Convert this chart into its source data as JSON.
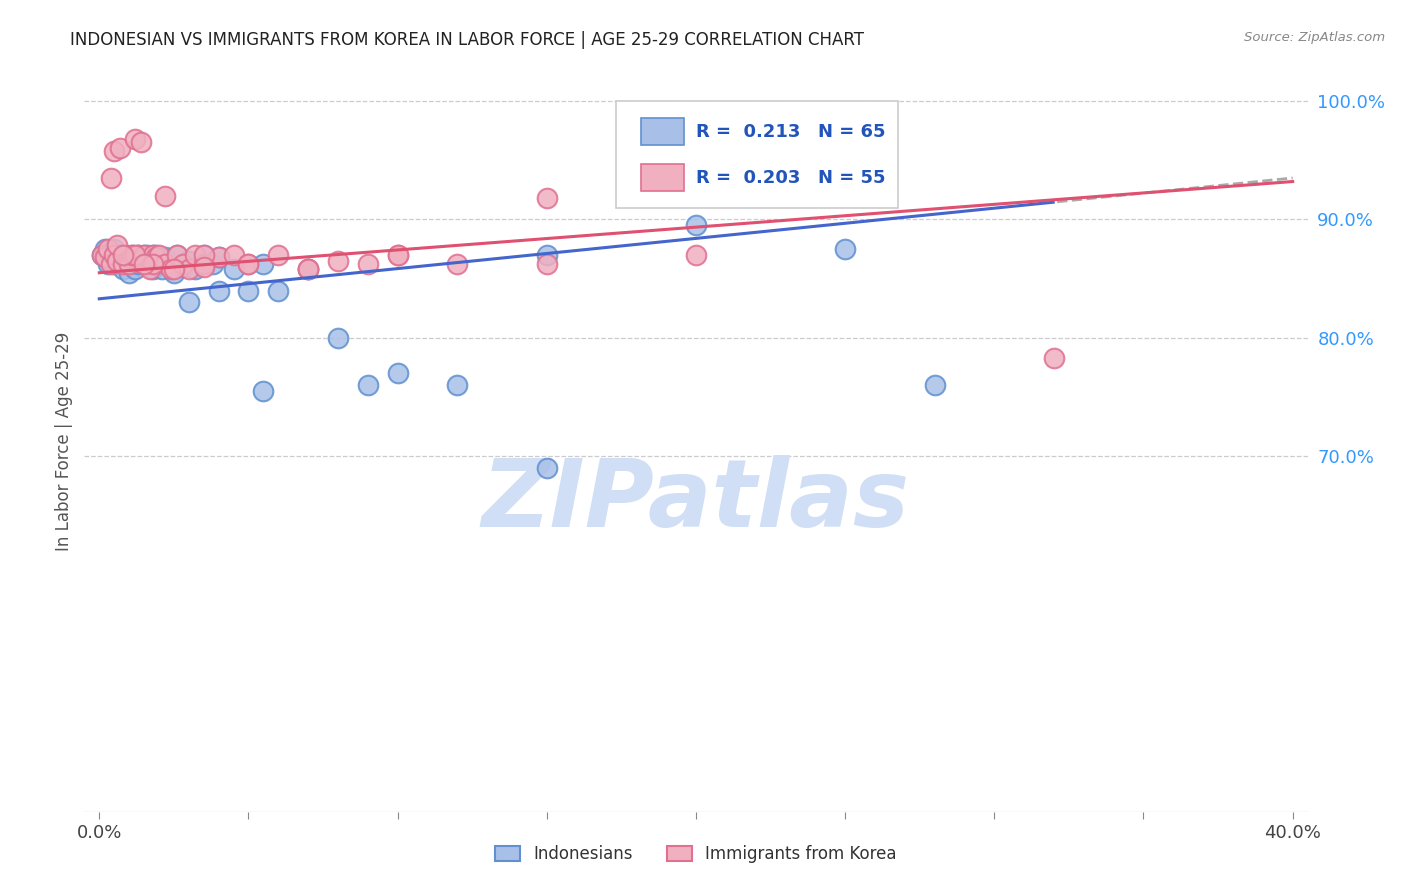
{
  "title": "INDONESIAN VS IMMIGRANTS FROM KOREA IN LABOR FORCE | AGE 25-29 CORRELATION CHART",
  "source": "Source: ZipAtlas.com",
  "ylabel": "In Labor Force | Age 25-29",
  "xlim": [
    -0.005,
    0.405
  ],
  "ylim": [
    0.4,
    1.025
  ],
  "xtick_positions": [
    0.0,
    0.05,
    0.1,
    0.15,
    0.2,
    0.25,
    0.3,
    0.35,
    0.4
  ],
  "xticklabels": [
    "0.0%",
    "",
    "",
    "",
    "",
    "",
    "",
    "",
    "40.0%"
  ],
  "ytick_right_vals": [
    0.7,
    0.8,
    0.9,
    1.0
  ],
  "ytick_right_labels": [
    "70.0%",
    "80.0%",
    "90.0%",
    "100.0%"
  ],
  "blue_face": "#a8c0e8",
  "blue_edge": "#6090d0",
  "pink_face": "#f0b0c0",
  "pink_edge": "#e07090",
  "blue_line": "#4466cc",
  "pink_line": "#e05070",
  "dash_color": "#aaaaaa",
  "watermark": "ZIPatlas",
  "watermark_color": "#d0dff5",
  "legend_R_blue": "R =  0.213",
  "legend_N_blue": "N = 65",
  "legend_R_pink": "R =  0.203",
  "legend_N_pink": "N = 55",
  "indo_x": [
    0.001,
    0.002,
    0.002,
    0.003,
    0.003,
    0.004,
    0.004,
    0.005,
    0.005,
    0.005,
    0.006,
    0.006,
    0.007,
    0.007,
    0.007,
    0.008,
    0.008,
    0.009,
    0.009,
    0.01,
    0.01,
    0.011,
    0.011,
    0.012,
    0.012,
    0.013,
    0.013,
    0.014,
    0.015,
    0.015,
    0.016,
    0.016,
    0.017,
    0.018,
    0.018,
    0.019,
    0.02,
    0.021,
    0.022,
    0.023,
    0.025,
    0.026,
    0.028,
    0.03,
    0.032,
    0.035,
    0.038,
    0.04,
    0.045,
    0.05,
    0.055,
    0.06,
    0.07,
    0.08,
    0.09,
    0.1,
    0.12,
    0.15,
    0.2,
    0.25,
    0.03,
    0.04,
    0.055,
    0.15,
    0.28
  ],
  "indo_y": [
    0.87,
    0.868,
    0.875,
    0.862,
    0.87,
    0.865,
    0.87,
    0.862,
    0.87,
    0.875,
    0.865,
    0.87,
    0.868,
    0.862,
    0.87,
    0.858,
    0.865,
    0.87,
    0.862,
    0.868,
    0.855,
    0.87,
    0.862,
    0.868,
    0.858,
    0.862,
    0.87,
    0.865,
    0.87,
    0.862,
    0.87,
    0.865,
    0.862,
    0.87,
    0.858,
    0.87,
    0.862,
    0.858,
    0.868,
    0.862,
    0.855,
    0.87,
    0.86,
    0.865,
    0.858,
    0.87,
    0.862,
    0.868,
    0.858,
    0.84,
    0.862,
    0.84,
    0.858,
    0.8,
    0.76,
    0.77,
    0.76,
    0.87,
    0.895,
    0.875,
    0.83,
    0.84,
    0.755,
    0.69,
    0.76
  ],
  "korea_x": [
    0.001,
    0.002,
    0.003,
    0.004,
    0.005,
    0.005,
    0.006,
    0.007,
    0.008,
    0.009,
    0.01,
    0.01,
    0.011,
    0.012,
    0.013,
    0.014,
    0.015,
    0.016,
    0.017,
    0.018,
    0.019,
    0.02,
    0.022,
    0.024,
    0.026,
    0.028,
    0.03,
    0.032,
    0.035,
    0.04,
    0.045,
    0.05,
    0.06,
    0.07,
    0.08,
    0.09,
    0.1,
    0.12,
    0.15,
    0.2,
    0.006,
    0.012,
    0.018,
    0.025,
    0.035,
    0.05,
    0.07,
    0.1,
    0.15,
    0.32,
    0.004,
    0.008,
    0.015,
    0.022,
    0.035
  ],
  "korea_y": [
    0.87,
    0.868,
    0.875,
    0.862,
    0.87,
    0.958,
    0.865,
    0.96,
    0.862,
    0.87,
    0.868,
    0.862,
    0.87,
    0.968,
    0.87,
    0.965,
    0.87,
    0.862,
    0.858,
    0.87,
    0.868,
    0.87,
    0.862,
    0.858,
    0.87,
    0.862,
    0.858,
    0.87,
    0.862,
    0.868,
    0.87,
    0.862,
    0.87,
    0.858,
    0.865,
    0.862,
    0.87,
    0.862,
    0.918,
    0.87,
    0.878,
    0.87,
    0.862,
    0.858,
    0.87,
    0.862,
    0.858,
    0.87,
    0.862,
    0.783,
    0.935,
    0.87,
    0.862,
    0.92,
    0.86
  ]
}
